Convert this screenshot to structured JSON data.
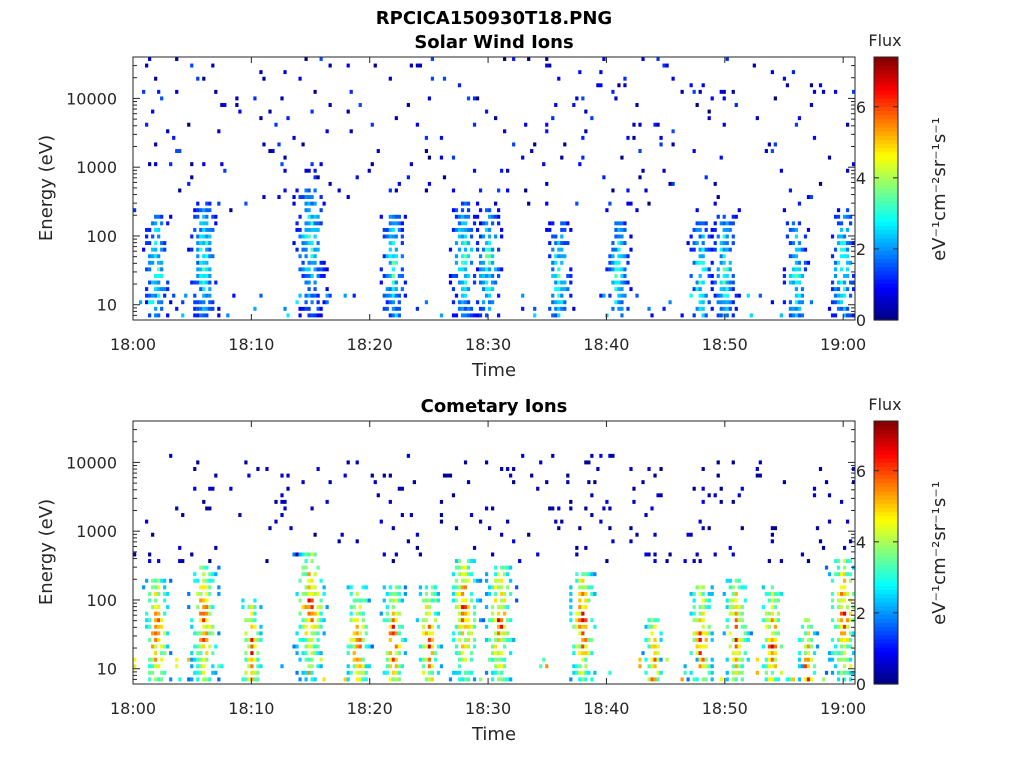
{
  "figure": {
    "main_title": "RPCICA150930T18.PNG"
  },
  "chart_data": [
    {
      "type": "heatmap",
      "title": "Solar Wind Ions",
      "xlabel": "Time",
      "ylabel": "Energy (eV)",
      "x_axis": {
        "range": [
          "18:00",
          "19:01"
        ],
        "ticks": [
          "18:00",
          "18:10",
          "18:20",
          "18:30",
          "18:40",
          "18:50",
          "19:00"
        ]
      },
      "y_axis": {
        "scale": "log",
        "range": [
          6,
          40000
        ],
        "ticks": [
          10,
          100,
          1000,
          10000
        ],
        "tick_labels": [
          "10",
          "100",
          "1000",
          "10000"
        ]
      },
      "colorbar": {
        "title": "Flux",
        "label": "eV⁻¹cm⁻²sr⁻¹s⁻¹",
        "range": [
          0,
          7.4
        ],
        "ticks": [
          0,
          2,
          4,
          6
        ],
        "colormap": "jet"
      },
      "features": {
        "background_speckle_energy_range": [
          200,
          40000
        ],
        "background_speckle_level": [
          0,
          1.5
        ],
        "bursts": [
          {
            "time": "18:02",
            "top_energy_eV": 200
          },
          {
            "time": "18:06",
            "top_energy_eV": 300
          },
          {
            "time": "18:15",
            "top_energy_eV": 500
          },
          {
            "time": "18:22",
            "top_energy_eV": 200
          },
          {
            "time": "18:28",
            "top_energy_eV": 300
          },
          {
            "time": "18:30",
            "top_energy_eV": 250
          },
          {
            "time": "18:36",
            "top_energy_eV": 150
          },
          {
            "time": "18:41",
            "top_energy_eV": 150
          },
          {
            "time": "18:48",
            "top_energy_eV": 150
          },
          {
            "time": "18:50",
            "top_energy_eV": 200
          },
          {
            "time": "18:56",
            "top_energy_eV": 150
          },
          {
            "time": "19:00",
            "top_energy_eV": 200
          }
        ],
        "burst_level": [
          0.5,
          3.5
        ],
        "max_level": 3.5
      }
    },
    {
      "type": "heatmap",
      "title": "Cometary Ions",
      "xlabel": "Time",
      "ylabel": "Energy (eV)",
      "x_axis": {
        "range": [
          "18:00",
          "19:01"
        ],
        "ticks": [
          "18:00",
          "18:10",
          "18:20",
          "18:30",
          "18:40",
          "18:50",
          "19:00"
        ]
      },
      "y_axis": {
        "scale": "log",
        "range": [
          6,
          40000
        ],
        "ticks": [
          10,
          100,
          1000,
          10000
        ],
        "tick_labels": [
          "10",
          "100",
          "1000",
          "10000"
        ]
      },
      "colorbar": {
        "title": "Flux",
        "label": "eV⁻¹cm⁻²sr⁻¹s⁻¹",
        "range": [
          0,
          7.4
        ],
        "ticks": [
          0,
          2,
          4,
          6
        ],
        "colormap": "jet"
      },
      "features": {
        "background_speckle_energy_range": [
          300,
          12000
        ],
        "background_speckle_level": [
          0,
          0.8
        ],
        "bursts": [
          {
            "time": "18:02",
            "top_energy_eV": 200
          },
          {
            "time": "18:06",
            "top_energy_eV": 300
          },
          {
            "time": "18:10",
            "top_energy_eV": 100
          },
          {
            "time": "18:15",
            "top_energy_eV": 500
          },
          {
            "time": "18:19",
            "top_energy_eV": 150
          },
          {
            "time": "18:22",
            "top_energy_eV": 150
          },
          {
            "time": "18:25",
            "top_energy_eV": 150
          },
          {
            "time": "18:28",
            "top_energy_eV": 400
          },
          {
            "time": "18:31",
            "top_energy_eV": 300
          },
          {
            "time": "18:38",
            "top_energy_eV": 250
          },
          {
            "time": "18:44",
            "top_energy_eV": 60
          },
          {
            "time": "18:48",
            "top_energy_eV": 150
          },
          {
            "time": "18:51",
            "top_energy_eV": 200
          },
          {
            "time": "18:54",
            "top_energy_eV": 150
          },
          {
            "time": "18:57",
            "top_energy_eV": 60
          },
          {
            "time": "19:00",
            "top_energy_eV": 400
          }
        ],
        "burst_level": [
          1.5,
          6.5
        ],
        "max_level": 7
      }
    }
  ]
}
